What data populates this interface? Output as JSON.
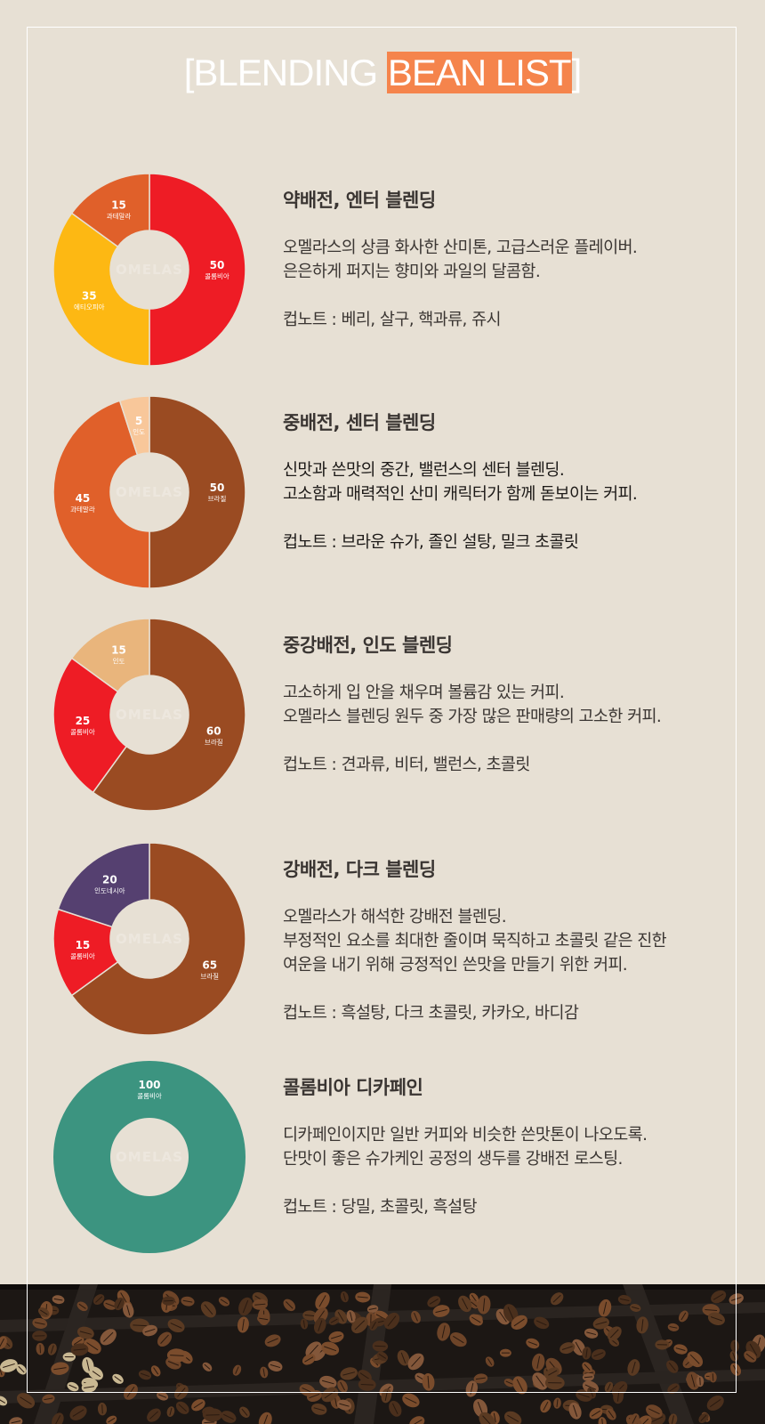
{
  "header": {
    "bracket_open": "[",
    "title_plain": "BLENDING ",
    "title_highlight": "BEAN LIST",
    "bracket_close": "]"
  },
  "colors": {
    "background": "#e7e0d4",
    "highlight": "#f5844c",
    "red": "#ee1c25",
    "orange": "#e0602a",
    "yellow": "#fdb813",
    "brown": "#9a4b22",
    "peach": "#f8c79a",
    "tan": "#e9b57c",
    "purple": "#554070",
    "teal": "#3c9480"
  },
  "watermark": "OMELAS",
  "blends": [
    {
      "title": "약배전, 엔터 블렌딩",
      "description_lines": [
        "오멜라스의 상큼 화사한 산미톤, 고급스러운 플레이버.",
        "은은하게 퍼지는 향미와 과일의 달콤함."
      ],
      "cupnote": "컵노트 : 베리, 살구, 핵과류, 쥬시",
      "chart_data": {
        "type": "pie",
        "slices": [
          {
            "value": 50,
            "origin": "콜롬비아",
            "color": "#ee1c25"
          },
          {
            "value": 35,
            "origin": "에티오피아",
            "color": "#fdb813"
          },
          {
            "value": 15,
            "origin": "과테말라",
            "color": "#e0602a"
          }
        ]
      }
    },
    {
      "title": "중배전, 센터 블렌딩",
      "description_lines": [
        "신맛과 쓴맛의 중간, 밸런스의 센터 블렌딩.",
        "고소함과 매력적인 산미 캐릭터가 함께 돋보이는 커피."
      ],
      "cupnote": "컵노트 : 브라운 슈가, 졸인 설탕, 밀크 초콜릿",
      "chart_data": {
        "type": "pie",
        "slices": [
          {
            "value": 50,
            "origin": "브라질",
            "color": "#9a4b22"
          },
          {
            "value": 45,
            "origin": "과테말라",
            "color": "#e0602a"
          },
          {
            "value": 5,
            "origin": "인도",
            "color": "#f8c79a"
          }
        ]
      }
    },
    {
      "title": "중강배전, 인도 블렌딩",
      "description_lines": [
        "고소하게 입 안을 채우며 볼륨감 있는 커피.",
        "오멜라스 블렌딩 원두 중 가장 많은 판매량의 고소한 커피."
      ],
      "cupnote": "컵노트 : 견과류, 비터, 밸런스, 초콜릿",
      "chart_data": {
        "type": "pie",
        "slices": [
          {
            "value": 60,
            "origin": "브라질",
            "color": "#9a4b22"
          },
          {
            "value": 25,
            "origin": "콜롬비아",
            "color": "#ee1c25"
          },
          {
            "value": 15,
            "origin": "인도",
            "color": "#e9b57c"
          }
        ]
      }
    },
    {
      "title": "강배전, 다크 블렌딩",
      "description_lines": [
        "오멜라스가 해석한 강배전 블렌딩.",
        "부정적인 요소를 최대한 줄이며 묵직하고 초콜릿 같은 진한",
        "여운을 내기 위해 긍정적인 쓴맛을 만들기 위한 커피."
      ],
      "cupnote": "컵노트 : 흑설탕, 다크 초콜릿, 카카오, 바디감",
      "chart_data": {
        "type": "pie",
        "slices": [
          {
            "value": 65,
            "origin": "브라질",
            "color": "#9a4b22"
          },
          {
            "value": 15,
            "origin": "콜롬비아",
            "color": "#ee1c25"
          },
          {
            "value": 20,
            "origin": "인도네시아",
            "color": "#554070"
          }
        ]
      }
    },
    {
      "title": "콜롬비아 디카페인",
      "description_lines": [
        "디카페인이지만 일반 커피와 비슷한 쓴맛톤이 나오도록.",
        "단맛이 좋은 슈가케인 공정의 생두를 강배전 로스팅."
      ],
      "cupnote": "컵노트 : 당밀, 초콜릿, 흑설탕",
      "chart_data": {
        "type": "pie",
        "slices": [
          {
            "value": 100,
            "origin": "콜롬비아",
            "color": "#3c9480"
          }
        ]
      }
    }
  ]
}
